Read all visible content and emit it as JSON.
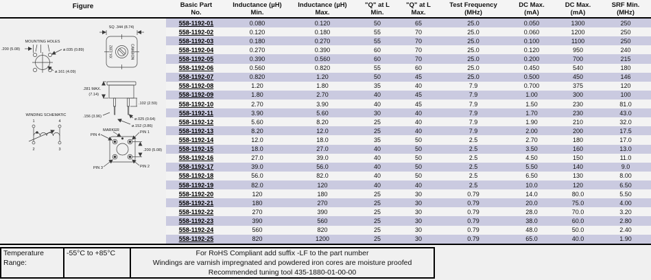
{
  "colors": {
    "stripe": "#cacae0",
    "light_row": "#f3f3f3",
    "page_bg": "#f0f0f0",
    "link": "#000000"
  },
  "figure": {
    "header": "Figure",
    "labels": {
      "mounting_holes": "MOUNTING HOLES",
      "dim_200_left": ".200 (5.08)",
      "dia_035": "ø.035 (0.89)",
      "dia_161": "ø.161 (4.09)",
      "sq_344": "SQ .344 (8.74)",
      "brand_right": "CAMBION",
      "brand_left": "XX-1192",
      "dim_281_l1": ".281 MAX.",
      "dim_281_l2": "(7.14)",
      "dim_102": ".102 (2.59)",
      "dim_156": ".156 (3.96)",
      "dia_025": "ø.025 (0.64)",
      "dia_152": "ø.152 (3.86)",
      "winding_schematic": "WINDING SCHEMATIC",
      "pin_top_left": "1",
      "pin_top_right": "4",
      "pin_bot_left": "2",
      "pin_bot_right": "3",
      "marker": "MARKER",
      "pin_1": "PIN 1",
      "pin_2": "PIN 2",
      "pin_3": "PIN 3",
      "pin_4": "PIN 4",
      "dim_200_right": ".200 (5.08)"
    }
  },
  "table": {
    "headers": [
      {
        "l1": "Basic Part",
        "l2": "No."
      },
      {
        "l1": "Inductance (µH)",
        "l2": "Min."
      },
      {
        "l1": "Inductance (µH)",
        "l2": "Max."
      },
      {
        "l1": "\"Q\" at L",
        "l2": "Min."
      },
      {
        "l1": "\"Q\" at L",
        "l2": "Max."
      },
      {
        "l1": "Test Frequency",
        "l2": "(MHz)"
      },
      {
        "l1": "DC Max.",
        "l2": "(mA)"
      },
      {
        "l1": "DC Max.",
        "l2": "(mA)"
      },
      {
        "l1": "SRF Min.",
        "l2": "(MHz)"
      }
    ],
    "rows": [
      {
        "part": "558-1192-01",
        "ind_min": "0.080",
        "ind_max": "0.120",
        "q_min": "50",
        "q_max": "65",
        "freq": "25.0",
        "dc1": "0.050",
        "dc2": "1300",
        "srf": "250"
      },
      {
        "part": "558-1192-02",
        "ind_min": "0.120",
        "ind_max": "0.180",
        "q_min": "55",
        "q_max": "70",
        "freq": "25.0",
        "dc1": "0.060",
        "dc2": "1200",
        "srf": "250"
      },
      {
        "part": "558-1192-03",
        "ind_min": "0.180",
        "ind_max": "0.270",
        "q_min": "55",
        "q_max": "70",
        "freq": "25.0",
        "dc1": "0.100",
        "dc2": "1100",
        "srf": "250"
      },
      {
        "part": "558-1192-04",
        "ind_min": "0.270",
        "ind_max": "0.390",
        "q_min": "60",
        "q_max": "70",
        "freq": "25.0",
        "dc1": "0.120",
        "dc2": "950",
        "srf": "240"
      },
      {
        "part": "558-1192-05",
        "ind_min": "0.390",
        "ind_max": "0.560",
        "q_min": "60",
        "q_max": "70",
        "freq": "25.0",
        "dc1": "0.200",
        "dc2": "700",
        "srf": "215"
      },
      {
        "part": "558-1192-06",
        "ind_min": "0.560",
        "ind_max": "0.820",
        "q_min": "55",
        "q_max": "60",
        "freq": "25.0",
        "dc1": "0.450",
        "dc2": "540",
        "srf": "180"
      },
      {
        "part": "558-1192-07",
        "ind_min": "0.820",
        "ind_max": "1.20",
        "q_min": "50",
        "q_max": "45",
        "freq": "25.0",
        "dc1": "0.500",
        "dc2": "450",
        "srf": "146"
      },
      {
        "part": "558-1192-08",
        "ind_min": "1.20",
        "ind_max": "1.80",
        "q_min": "35",
        "q_max": "40",
        "freq": "7.9",
        "dc1": "0.700",
        "dc2": "375",
        "srf": "120"
      },
      {
        "part": "558-1192-09",
        "ind_min": "1.80",
        "ind_max": "2.70",
        "q_min": "40",
        "q_max": "45",
        "freq": "7.9",
        "dc1": "1.00",
        "dc2": "300",
        "srf": "100"
      },
      {
        "part": "558-1192-10",
        "ind_min": "2.70",
        "ind_max": "3.90",
        "q_min": "40",
        "q_max": "45",
        "freq": "7.9",
        "dc1": "1.50",
        "dc2": "230",
        "srf": "81.0"
      },
      {
        "part": "558-1192-11",
        "ind_min": "3.90",
        "ind_max": "5.60",
        "q_min": "30",
        "q_max": "40",
        "freq": "7.9",
        "dc1": "1.70",
        "dc2": "230",
        "srf": "43.0"
      },
      {
        "part": "558-1192-12",
        "ind_min": "5.60",
        "ind_max": "8.20",
        "q_min": "25",
        "q_max": "40",
        "freq": "7.9",
        "dc1": "1.90",
        "dc2": "210",
        "srf": "32.0"
      },
      {
        "part": "558-1192-13",
        "ind_min": "8.20",
        "ind_max": "12.0",
        "q_min": "25",
        "q_max": "40",
        "freq": "7.9",
        "dc1": "2.00",
        "dc2": "200",
        "srf": "17.5"
      },
      {
        "part": "558-1192-14",
        "ind_min": "12.0",
        "ind_max": "18.0",
        "q_min": "35",
        "q_max": "50",
        "freq": "2.5",
        "dc1": "2.70",
        "dc2": "180",
        "srf": "17.0"
      },
      {
        "part": "558-1192-15",
        "ind_min": "18.0",
        "ind_max": "27.0",
        "q_min": "40",
        "q_max": "50",
        "freq": "2.5",
        "dc1": "3.50",
        "dc2": "160",
        "srf": "13.0"
      },
      {
        "part": "558-1192-16",
        "ind_min": "27.0",
        "ind_max": "39.0",
        "q_min": "40",
        "q_max": "50",
        "freq": "2.5",
        "dc1": "4.50",
        "dc2": "150",
        "srf": "11.0"
      },
      {
        "part": "558-1192-17",
        "ind_min": "39.0",
        "ind_max": "56.0",
        "q_min": "40",
        "q_max": "50",
        "freq": "2.5",
        "dc1": "5.50",
        "dc2": "140",
        "srf": "9.0"
      },
      {
        "part": "558-1192-18",
        "ind_min": "56.0",
        "ind_max": "82.0",
        "q_min": "40",
        "q_max": "50",
        "freq": "2.5",
        "dc1": "6.50",
        "dc2": "130",
        "srf": "8.00"
      },
      {
        "part": "558-1192-19",
        "ind_min": "82.0",
        "ind_max": "120",
        "q_min": "40",
        "q_max": "40",
        "freq": "2.5",
        "dc1": "10.0",
        "dc2": "120",
        "srf": "6.50"
      },
      {
        "part": "558-1192-20",
        "ind_min": "120",
        "ind_max": "180",
        "q_min": "25",
        "q_max": "30",
        "freq": "0.79",
        "dc1": "14.0",
        "dc2": "80.0",
        "srf": "5.50"
      },
      {
        "part": "558-1192-21",
        "ind_min": "180",
        "ind_max": "270",
        "q_min": "25",
        "q_max": "30",
        "freq": "0.79",
        "dc1": "20.0",
        "dc2": "75.0",
        "srf": "4.00"
      },
      {
        "part": "558-1192-22",
        "ind_min": "270",
        "ind_max": "390",
        "q_min": "25",
        "q_max": "30",
        "freq": "0.79",
        "dc1": "28.0",
        "dc2": "70.0",
        "srf": "3.20"
      },
      {
        "part": "558-1192-23",
        "ind_min": "390",
        "ind_max": "560",
        "q_min": "25",
        "q_max": "30",
        "freq": "0.79",
        "dc1": "38.0",
        "dc2": "60.0",
        "srf": "2.80"
      },
      {
        "part": "558-1192-24",
        "ind_min": "560",
        "ind_max": "820",
        "q_min": "25",
        "q_max": "30",
        "freq": "0.79",
        "dc1": "48.0",
        "dc2": "50.0",
        "srf": "2.40"
      },
      {
        "part": "558-1192-25",
        "ind_min": "820",
        "ind_max": "1200",
        "q_min": "25",
        "q_max": "30",
        "freq": "0.79",
        "dc1": "65.0",
        "dc2": "40.0",
        "srf": "1.90"
      }
    ]
  },
  "footer": {
    "temp_label": "Temperature Range:",
    "temp_value": "-55°C to +85°C",
    "notes": [
      "For RoHS Compliant add suffix -LF to the part number",
      "Windings are varnish impregnated and powdered iron cores are moisture proofed",
      "Recommended tuning tool 435-1880-01-00-00"
    ]
  }
}
